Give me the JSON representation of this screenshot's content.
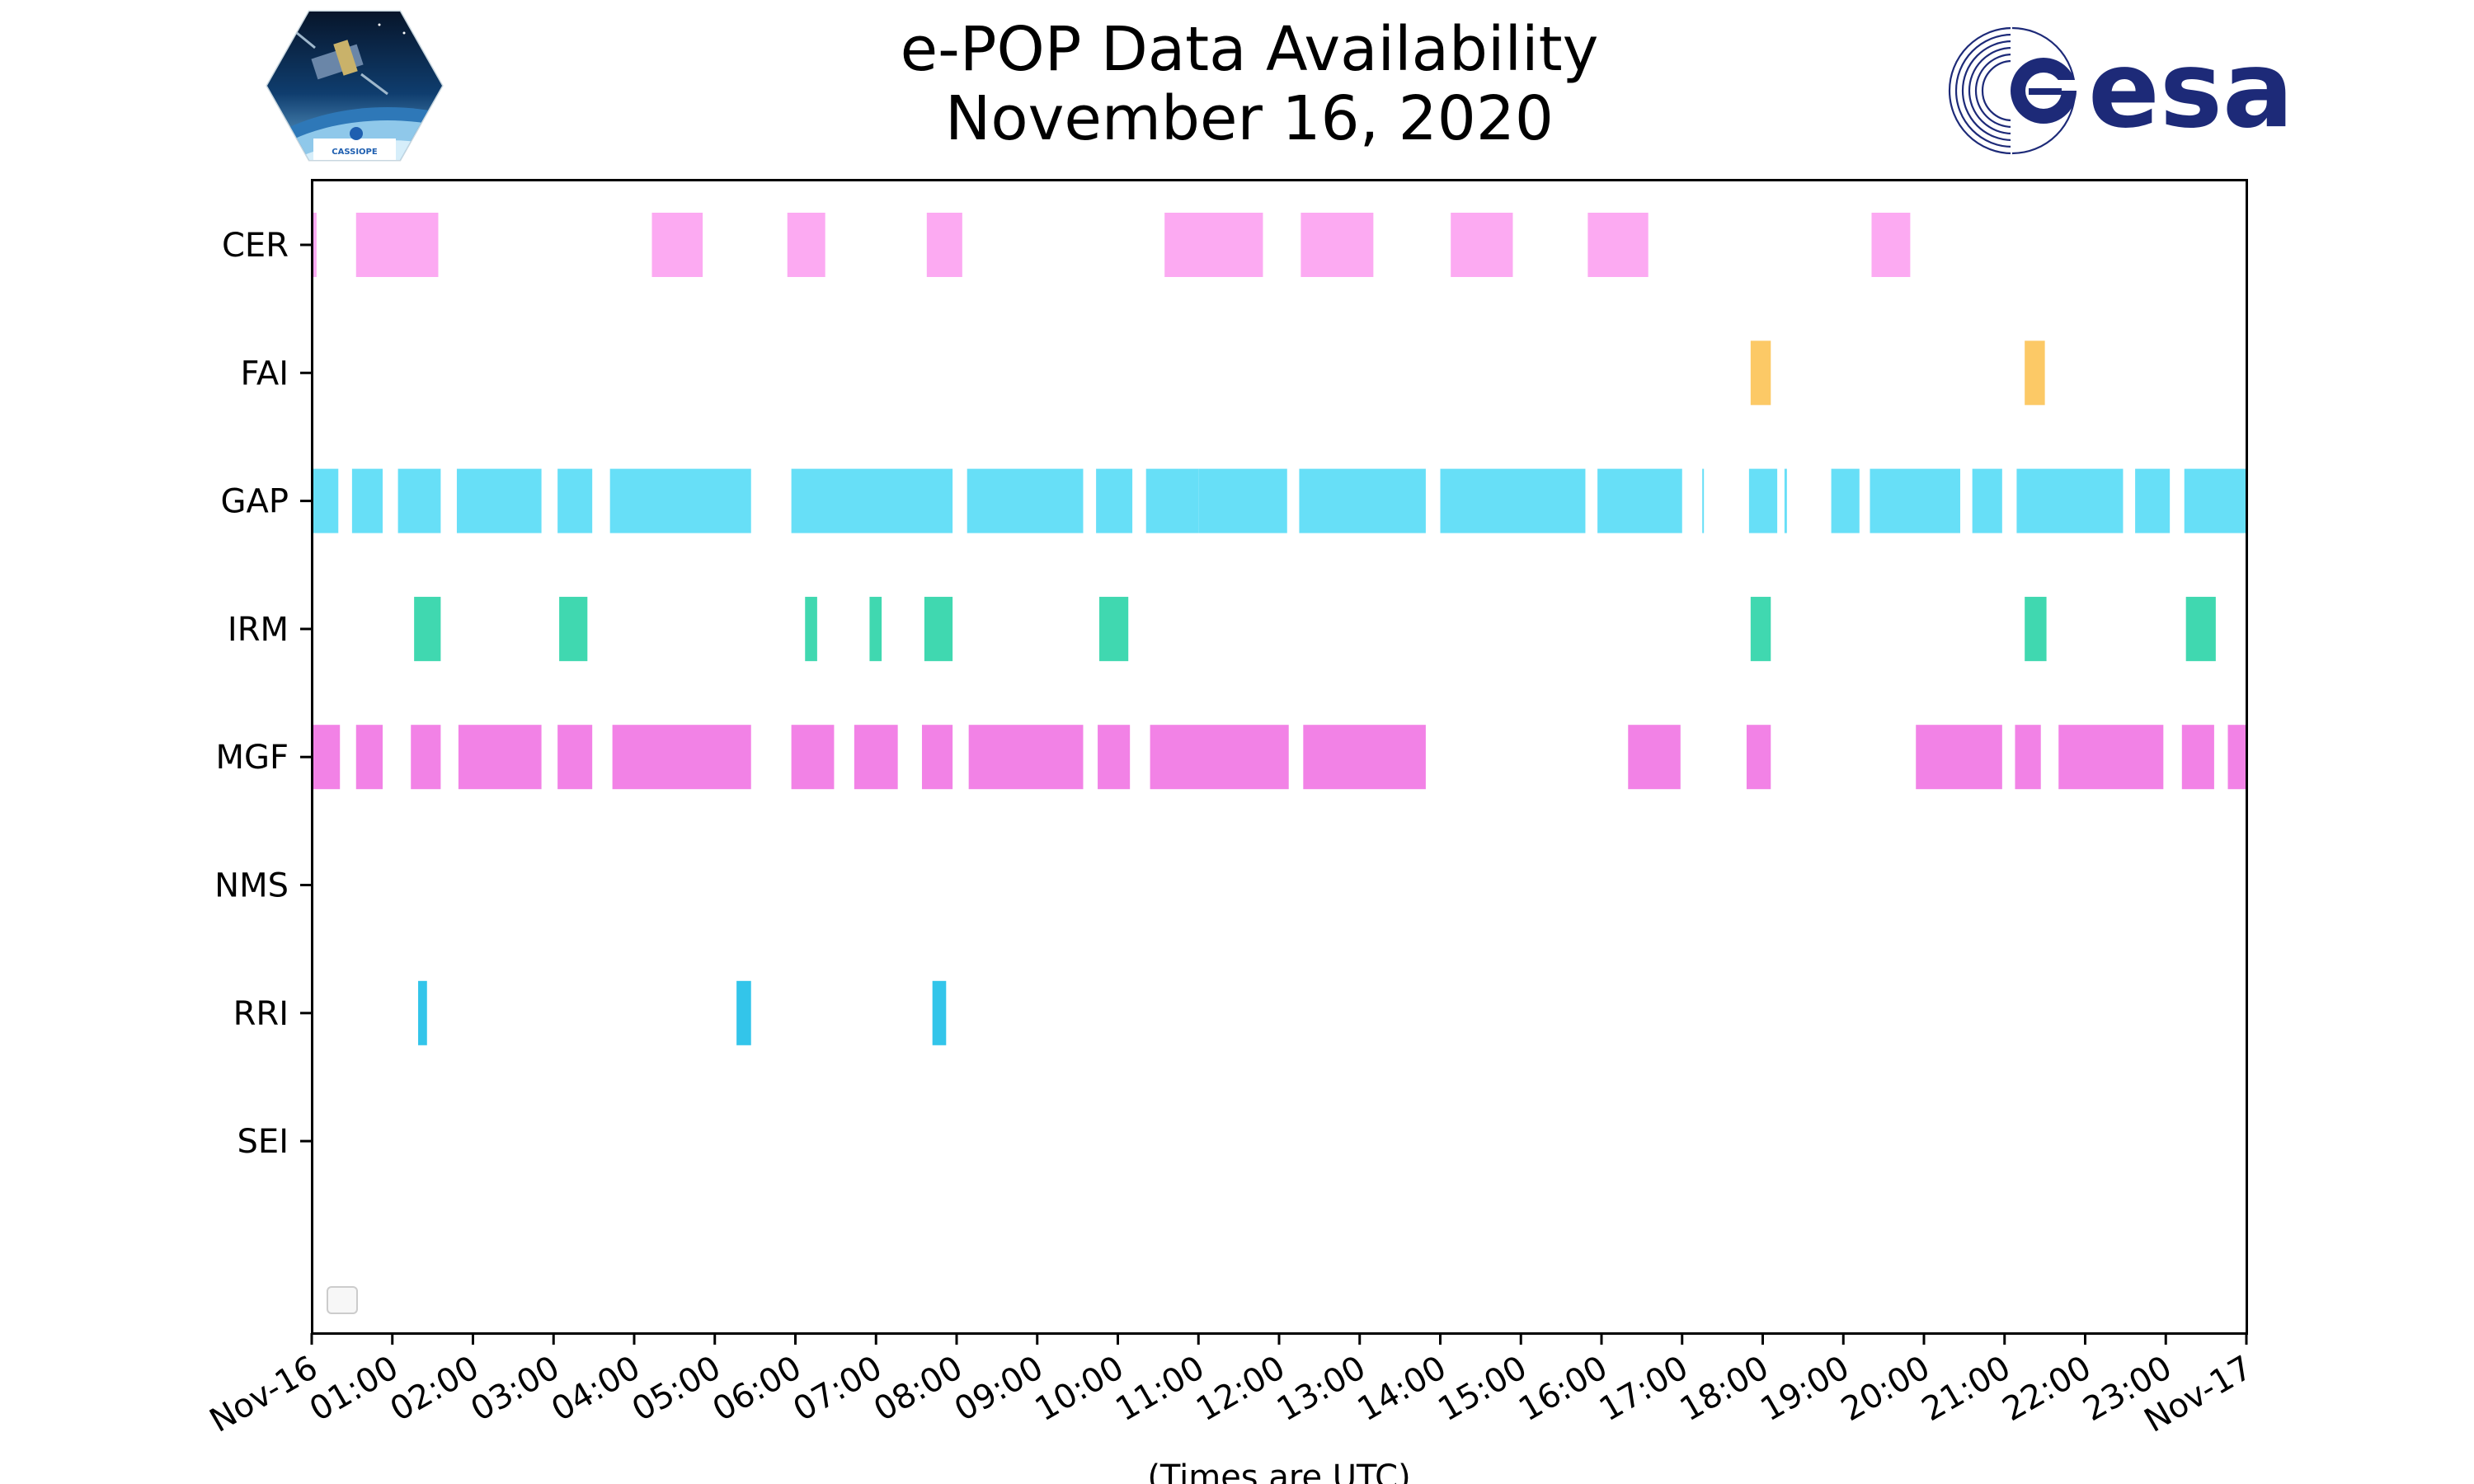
{
  "header": {
    "title_line1": "e-POP Data Availability",
    "title_line2": "November 16, 2020"
  },
  "logos": {
    "left_text": "CASSIOPE",
    "right_text": "esa"
  },
  "chart_data": {
    "type": "timeline",
    "title": "e-POP Data Availability November 16, 2020",
    "xlabel": "(Times are UTC)",
    "ylabel": "",
    "xlim": [
      0,
      24
    ],
    "x_units": "hours (UTC)",
    "xticks": [
      "Nov-16",
      "01:00",
      "02:00",
      "03:00",
      "04:00",
      "05:00",
      "06:00",
      "07:00",
      "08:00",
      "09:00",
      "10:00",
      "11:00",
      "12:00",
      "13:00",
      "14:00",
      "15:00",
      "16:00",
      "17:00",
      "18:00",
      "19:00",
      "20:00",
      "21:00",
      "22:00",
      "23:00",
      "Nov-17"
    ],
    "categories": [
      "CER",
      "FAI",
      "GAP",
      "IRM",
      "MGF",
      "NMS",
      "RRI",
      "SEI"
    ],
    "series": [
      {
        "name": "CER",
        "color": "#fcaaf2",
        "intervals": [
          [
            0.0,
            0.06
          ],
          [
            0.55,
            1.57
          ],
          [
            4.22,
            4.85
          ],
          [
            5.9,
            6.37
          ],
          [
            7.63,
            8.07
          ],
          [
            10.58,
            11.8
          ],
          [
            12.27,
            13.17
          ],
          [
            14.13,
            14.9
          ],
          [
            15.83,
            16.58
          ],
          [
            19.35,
            19.83
          ]
        ]
      },
      {
        "name": "FAI",
        "color": "#fcc966",
        "intervals": [
          [
            17.85,
            18.1
          ],
          [
            21.25,
            21.5
          ]
        ]
      },
      {
        "name": "GAP",
        "color": "#67dff7",
        "intervals": [
          [
            0.0,
            0.33
          ],
          [
            0.5,
            0.88
          ],
          [
            1.07,
            1.6
          ],
          [
            1.8,
            2.85
          ],
          [
            3.05,
            3.48
          ],
          [
            3.7,
            5.45
          ],
          [
            5.95,
            7.95
          ],
          [
            8.13,
            9.57
          ],
          [
            9.73,
            10.18
          ],
          [
            10.35,
            11.0
          ],
          [
            11.0,
            12.1
          ],
          [
            12.25,
            13.82
          ],
          [
            14.0,
            15.8
          ],
          [
            15.95,
            17.0
          ],
          [
            17.25,
            17.27
          ],
          [
            17.83,
            18.18
          ],
          [
            18.27,
            18.3
          ],
          [
            18.85,
            19.2
          ],
          [
            19.33,
            20.45
          ],
          [
            20.6,
            20.97
          ],
          [
            21.15,
            22.47
          ],
          [
            22.62,
            23.05
          ],
          [
            23.23,
            24.0
          ]
        ]
      },
      {
        "name": "IRM",
        "color": "#40d8b0",
        "intervals": [
          [
            1.27,
            1.6
          ],
          [
            3.07,
            3.42
          ],
          [
            6.12,
            6.27
          ],
          [
            6.92,
            7.07
          ],
          [
            7.6,
            7.95
          ],
          [
            9.77,
            10.13
          ],
          [
            17.85,
            18.1
          ],
          [
            21.25,
            21.52
          ],
          [
            23.25,
            23.62
          ]
        ]
      },
      {
        "name": "MGF",
        "color": "#f282e6",
        "intervals": [
          [
            0.0,
            0.35
          ],
          [
            0.55,
            0.88
          ],
          [
            1.23,
            1.6
          ],
          [
            1.82,
            2.85
          ],
          [
            3.05,
            3.48
          ],
          [
            3.73,
            5.45
          ],
          [
            5.95,
            6.48
          ],
          [
            6.73,
            7.27
          ],
          [
            7.57,
            7.95
          ],
          [
            8.15,
            9.57
          ],
          [
            9.75,
            10.15
          ],
          [
            10.4,
            12.12
          ],
          [
            12.3,
            13.82
          ],
          [
            16.33,
            16.98
          ],
          [
            17.8,
            18.1
          ],
          [
            19.9,
            20.97
          ],
          [
            21.13,
            21.45
          ],
          [
            21.67,
            22.97
          ],
          [
            23.2,
            23.6
          ],
          [
            23.77,
            24.0
          ]
        ]
      },
      {
        "name": "NMS",
        "color": "#f282e6",
        "intervals": []
      },
      {
        "name": "RRI",
        "color": "#33c5ea",
        "intervals": [
          [
            1.32,
            1.43
          ],
          [
            5.27,
            5.45
          ],
          [
            7.7,
            7.87
          ]
        ]
      },
      {
        "name": "SEI",
        "color": "#33c5ea",
        "intervals": []
      }
    ],
    "legend": "lower-left (empty)"
  }
}
